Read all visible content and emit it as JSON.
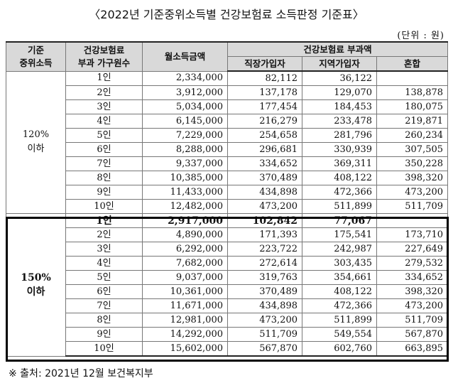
{
  "title": "〈2022년 기준중위소득별 건강보험료 소득판정 기준표〉",
  "unit": "(단위 : 원)",
  "headers": {
    "median": "기준\n중위소득",
    "household": "건강보험료\n부과 가구원수",
    "income": "월소득금액",
    "premium": "건강보험료 부과액",
    "employee": "직장가입자",
    "regional": "지역가입자",
    "mixed": "혼합"
  },
  "groups": [
    {
      "label": "120%\n이하",
      "rows": [
        {
          "n": "1인",
          "income": "2,334,000",
          "emp": "82,112",
          "reg": "36,122",
          "mix": ""
        },
        {
          "n": "2인",
          "income": "3,912,000",
          "emp": "137,178",
          "reg": "129,070",
          "mix": "138,878"
        },
        {
          "n": "3인",
          "income": "5,034,000",
          "emp": "177,454",
          "reg": "184,453",
          "mix": "180,075"
        },
        {
          "n": "4인",
          "income": "6,145,000",
          "emp": "216,279",
          "reg": "233,478",
          "mix": "219,871"
        },
        {
          "n": "5인",
          "income": "7,229,000",
          "emp": "254,658",
          "reg": "281,796",
          "mix": "260,234"
        },
        {
          "n": "6인",
          "income": "8,288,000",
          "emp": "296,681",
          "reg": "330,939",
          "mix": "307,505"
        },
        {
          "n": "7인",
          "income": "9,337,000",
          "emp": "334,652",
          "reg": "369,311",
          "mix": "350,228"
        },
        {
          "n": "8인",
          "income": "10,385,000",
          "emp": "370,489",
          "reg": "408,122",
          "mix": "398,320"
        },
        {
          "n": "9인",
          "income": "11,433,000",
          "emp": "434,898",
          "reg": "472,366",
          "mix": "473,200"
        },
        {
          "n": "10인",
          "income": "12,482,000",
          "emp": "473,200",
          "reg": "511,899",
          "mix": "511,709"
        }
      ]
    },
    {
      "label": "150%\n이하",
      "rows": [
        {
          "n": "1인",
          "income": "2,917,000",
          "emp": "102,842",
          "reg": "77,067",
          "mix": "",
          "bold": true
        },
        {
          "n": "2인",
          "income": "4,890,000",
          "emp": "171,393",
          "reg": "175,541",
          "mix": "173,710"
        },
        {
          "n": "3인",
          "income": "6,292,000",
          "emp": "223,722",
          "reg": "242,987",
          "mix": "227,649"
        },
        {
          "n": "4인",
          "income": "7,682,000",
          "emp": "272,614",
          "reg": "303,435",
          "mix": "279,532"
        },
        {
          "n": "5인",
          "income": "9,037,000",
          "emp": "319,763",
          "reg": "354,661",
          "mix": "334,652"
        },
        {
          "n": "6인",
          "income": "10,361,000",
          "emp": "370,489",
          "reg": "408,122",
          "mix": "398,320"
        },
        {
          "n": "7인",
          "income": "11,671,000",
          "emp": "434,898",
          "reg": "472,366",
          "mix": "473,200"
        },
        {
          "n": "8인",
          "income": "12,981,000",
          "emp": "473,200",
          "reg": "511,899",
          "mix": "511,709"
        },
        {
          "n": "9인",
          "income": "14,292,000",
          "emp": "511,709",
          "reg": "549,554",
          "mix": "567,870"
        },
        {
          "n": "10인",
          "income": "15,602,000",
          "emp": "567,870",
          "reg": "602,760",
          "mix": "663,895"
        }
      ]
    }
  ],
  "source": "※ 출처: 2021년 12월 보건복지부"
}
